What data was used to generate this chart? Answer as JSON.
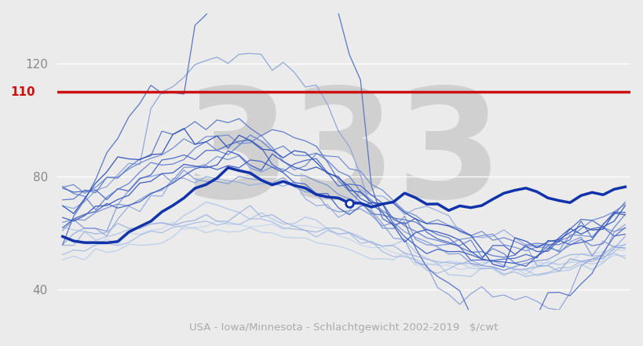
{
  "xlabel": "USA - Iowa/Minnesota - Schlachtgewicht 2002-2019   $/cwt",
  "yticks": [
    40,
    80,
    120
  ],
  "ymin": 33,
  "ymax": 138,
  "red_line_y": 110,
  "background_color": "#ebebeb",
  "red_color": "#cc1111",
  "dark_blue_2019": "#1133aa",
  "grid_color": "#ffffff",
  "watermark_color": "#d0d0d0",
  "line_colors": [
    "#c5d3e8",
    "#b8c9e3",
    "#aabcdd",
    "#9db0d7",
    "#90a4d1",
    "#8399cb",
    "#768dc5",
    "#6981bf",
    "#5c75b9",
    "#4f69b3",
    "#425dad",
    "#3551a7",
    "#2845a1",
    "#1b399b",
    "#2244aa",
    "#2a4fbb",
    "#3360cc",
    "#1a3a8a"
  ],
  "line_widths": [
    0.8,
    0.8,
    0.8,
    0.8,
    0.8,
    0.8,
    0.8,
    0.8,
    0.8,
    0.8,
    0.8,
    0.8,
    0.8,
    0.8,
    0.8,
    0.8,
    0.8,
    2.5
  ],
  "dot_week": 26,
  "dot_color": "#1133aa"
}
